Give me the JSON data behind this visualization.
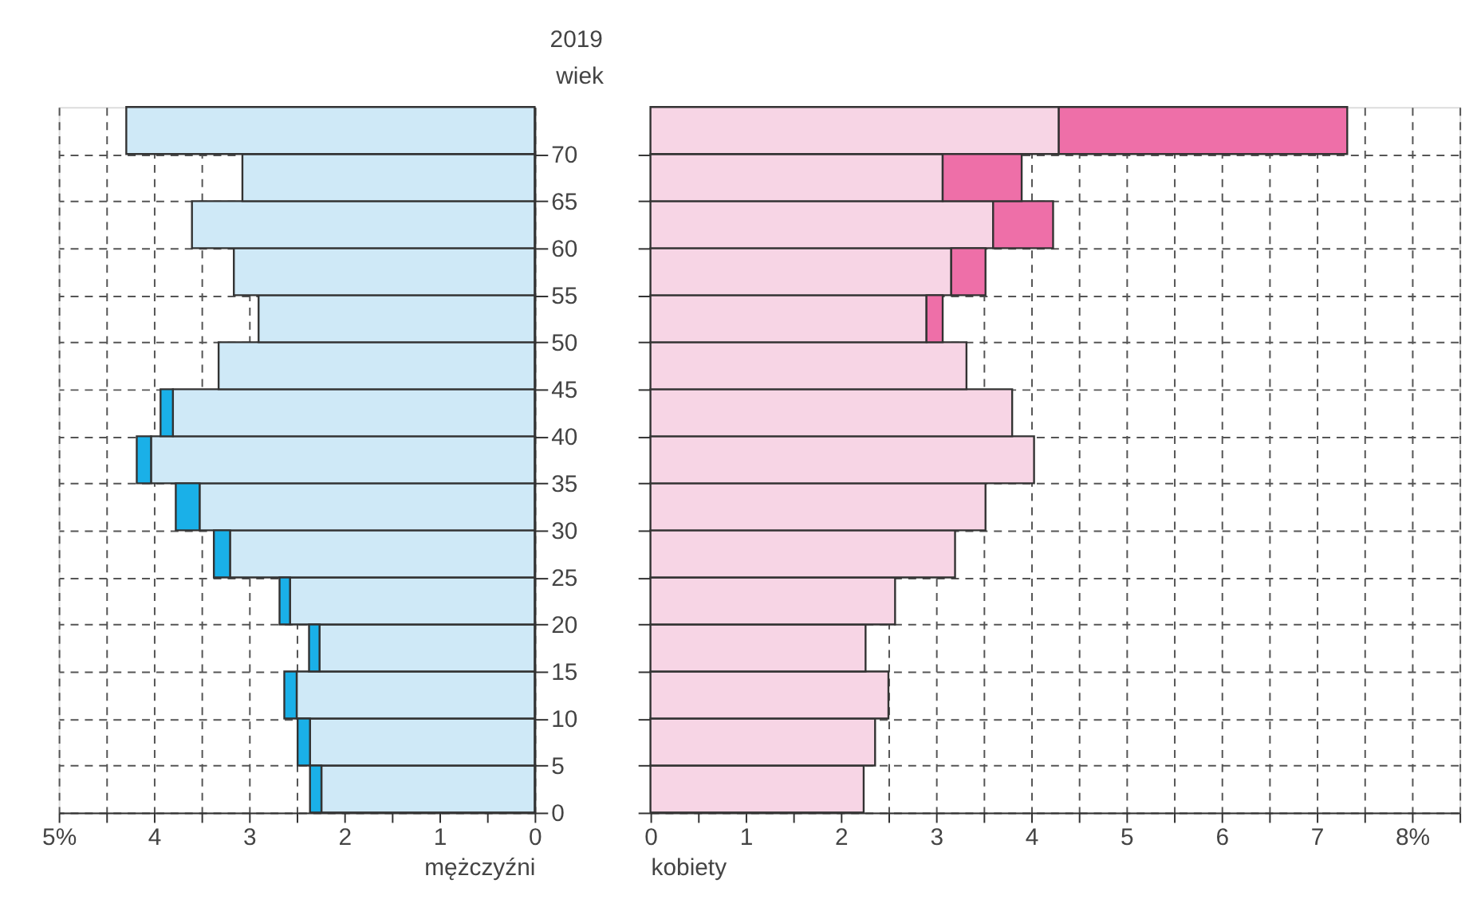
{
  "chart_data": [
    {
      "type": "bar",
      "orientation": "horizontal",
      "stacked": true,
      "title": "2019",
      "ylabel": "wiek",
      "xlabel": "mężczyźni",
      "grid": true,
      "x": [
        2.5,
        7.5,
        12.5,
        17.5,
        22.5,
        27.5,
        32.5,
        37.5,
        42.5,
        47.5,
        52.5,
        57.5,
        62.5,
        67.5,
        72.5
      ],
      "xlim": [
        5,
        0
      ],
      "xticks": [
        {
          "value": 5,
          "label": "5%"
        },
        {
          "value": 4.5,
          "label": null
        },
        4,
        {
          "value": 3.5,
          "label": null
        },
        3,
        {
          "value": 2.5,
          "label": null
        },
        2,
        {
          "value": 1.5,
          "label": null
        },
        1,
        {
          "value": 0.5,
          "label": null
        },
        0
      ],
      "ylim": [
        0,
        75
      ],
      "yticks": [
        0,
        5,
        10,
        15,
        20,
        25,
        30,
        35,
        40,
        45,
        50,
        55,
        60,
        65,
        70
      ],
      "series": [
        {
          "color": "#cfe9f7",
          "values": [
            2.24,
            2.36,
            2.5,
            2.26,
            2.57,
            3.2,
            3.52,
            4.03,
            3.8,
            3.32,
            2.9,
            3.16,
            3.6,
            3.07,
            4.29
          ]
        },
        {
          "color": "#1ab0e8",
          "values": [
            0.12,
            0.13,
            0.13,
            0.11,
            0.11,
            0.17,
            0.25,
            0.15,
            0.13,
            null,
            null,
            null,
            null,
            null,
            null
          ]
        }
      ]
    },
    {
      "type": "bar",
      "orientation": "horizontal",
      "stacked": true,
      "xlabel": "kobiety",
      "grid": true,
      "tick_labels": "x",
      "x": [
        2.5,
        7.5,
        12.5,
        17.5,
        22.5,
        27.5,
        32.5,
        37.5,
        42.5,
        47.5,
        52.5,
        57.5,
        62.5,
        67.5,
        72.5
      ],
      "xlim": [
        0,
        8.5
      ],
      "xticks": [
        0,
        {
          "value": 0.5,
          "label": null
        },
        1,
        {
          "value": 1.5,
          "label": null
        },
        2,
        {
          "value": 2.5,
          "label": null
        },
        3,
        {
          "value": 3.5,
          "label": null
        },
        4,
        {
          "value": 4.5,
          "label": null
        },
        5,
        {
          "value": 5.5,
          "label": null
        },
        6,
        {
          "value": 6.5,
          "label": null
        },
        7,
        {
          "value": 7.5,
          "label": null
        },
        {
          "value": 8,
          "label": "8%"
        },
        {
          "value": 8.5,
          "label": null
        }
      ],
      "ylim": [
        0,
        75
      ],
      "yticks": [
        0,
        5,
        10,
        15,
        20,
        25,
        30,
        35,
        40,
        45,
        50,
        55,
        60,
        65,
        70
      ],
      "series": [
        {
          "color": "#f7d5e5",
          "values": [
            2.24,
            2.36,
            2.5,
            2.26,
            2.57,
            3.2,
            3.52,
            4.03,
            3.8,
            3.32,
            2.9,
            3.16,
            3.6,
            3.07,
            4.29
          ]
        },
        {
          "color": "#ee6fa8",
          "values": [
            null,
            null,
            null,
            null,
            null,
            null,
            null,
            null,
            null,
            null,
            0.17,
            0.36,
            0.63,
            0.83,
            3.03
          ]
        }
      ]
    }
  ]
}
